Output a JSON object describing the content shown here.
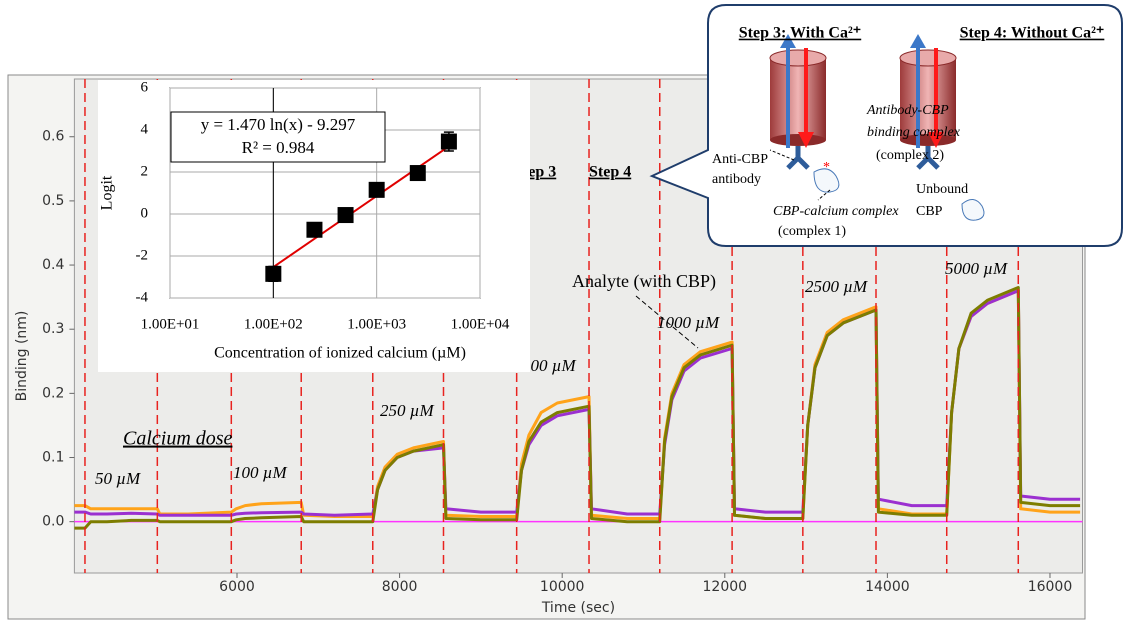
{
  "chart_data": [
    {
      "type": "line",
      "x_label": "Time (sec)",
      "y_label": "Binding (nm)",
      "xlim": [
        4000,
        16400
      ],
      "xticks": [
        6000,
        8000,
        10000,
        12000,
        14000,
        16000
      ],
      "ylim": [
        -0.08,
        0.69
      ],
      "yticks": [
        {
          "value": 0,
          "label": "0.0"
        },
        0.1,
        0.2,
        0.3,
        0.4,
        0.5,
        0.6
      ],
      "event_lines": [
        4130,
        5020,
        5930,
        6790,
        7670,
        8540,
        9440,
        10330,
        11200,
        12090,
        12960,
        13860,
        14730,
        15610
      ],
      "event_line_color": "#e8231f",
      "baseline": 0,
      "baseline_color": "#ff33ff",
      "x": [
        4000,
        4130,
        4200,
        4400,
        4700,
        5020,
        5050,
        5400,
        5930,
        5990,
        6100,
        6300,
        6790,
        6820,
        7200,
        7670,
        7730,
        7820,
        7970,
        8170,
        8540,
        8570,
        9000,
        9440,
        9500,
        9590,
        9740,
        9940,
        10330,
        10360,
        10800,
        11200,
        11260,
        11350,
        11500,
        11700,
        12090,
        12120,
        12500,
        12960,
        13020,
        13110,
        13260,
        13460,
        13860,
        13890,
        14300,
        14730,
        14790,
        14880,
        15030,
        15230,
        15610,
        15640,
        16000,
        16370
      ],
      "series": [
        {
          "color": "#ffa31a",
          "values": [
            0.025,
            0.025,
            0.02,
            0.02,
            0.02,
            0.02,
            0.012,
            0.012,
            0.015,
            0.02,
            0.025,
            0.028,
            0.03,
            0.01,
            0.008,
            0.008,
            0.055,
            0.085,
            0.105,
            0.115,
            0.125,
            0.01,
            0.008,
            0.008,
            0.09,
            0.135,
            0.17,
            0.185,
            0.195,
            0.01,
            0.005,
            0.005,
            0.13,
            0.2,
            0.245,
            0.265,
            0.28,
            0.01,
            0.005,
            0.005,
            0.15,
            0.245,
            0.295,
            0.315,
            0.335,
            0.02,
            0.012,
            0.012,
            0.17,
            0.27,
            0.32,
            0.34,
            0.36,
            0.02,
            0.015,
            0.015
          ]
        },
        {
          "color": "#9b30d0",
          "values": [
            0.015,
            0.015,
            0.012,
            0.012,
            0.013,
            0.012,
            0.01,
            0.01,
            0.01,
            0.012,
            0.013,
            0.014,
            0.015,
            0.012,
            0.01,
            0.012,
            0.05,
            0.08,
            0.1,
            0.11,
            0.115,
            0.02,
            0.015,
            0.015,
            0.08,
            0.12,
            0.15,
            0.165,
            0.175,
            0.02,
            0.012,
            0.012,
            0.12,
            0.19,
            0.235,
            0.255,
            0.27,
            0.02,
            0.015,
            0.015,
            0.15,
            0.24,
            0.29,
            0.31,
            0.33,
            0.035,
            0.025,
            0.025,
            0.17,
            0.27,
            0.32,
            0.34,
            0.36,
            0.04,
            0.035,
            0.035
          ]
        },
        {
          "color": "#7d7d00",
          "values": [
            -0.01,
            -0.01,
            0.0,
            0.0,
            0.002,
            0.002,
            0.0,
            0.0,
            0.0,
            0.003,
            0.005,
            0.006,
            0.008,
            0.0,
            0.0,
            0.0,
            0.05,
            0.08,
            0.1,
            0.11,
            0.12,
            0.005,
            0.003,
            0.003,
            0.08,
            0.125,
            0.155,
            0.17,
            0.18,
            0.005,
            0.0,
            0.0,
            0.125,
            0.195,
            0.24,
            0.26,
            0.275,
            0.01,
            0.005,
            0.005,
            0.15,
            0.24,
            0.29,
            0.31,
            0.33,
            0.015,
            0.01,
            0.01,
            0.17,
            0.27,
            0.325,
            0.345,
            0.365,
            0.03,
            0.025,
            0.025
          ]
        }
      ],
      "labels": {
        "calcium_dose": "Calcium dose",
        "step3": "Step 3",
        "step4": "Step 4",
        "analyte": "Analyte (with CBP)",
        "doses": [
          "50 µM",
          "100 µM",
          "250 µM",
          "500 µM",
          "1000 µM",
          "2500 µM",
          "5000 µM"
        ]
      }
    },
    {
      "type": "scatter",
      "x_label": "Concentration of ionized calcium (µM)",
      "y_label": "Logit",
      "log_x": true,
      "grid": true,
      "xlim": [
        10,
        10000
      ],
      "xticks": [
        {
          "value": 10,
          "label": "1.00E+01"
        },
        {
          "value": 100,
          "label": "1.00E+02"
        },
        {
          "value": 1000,
          "label": "1.00E+03"
        },
        {
          "value": 10000,
          "label": "1.00E+04"
        }
      ],
      "ylim": [
        -4,
        6
      ],
      "yticks": [
        -4,
        -2,
        0,
        2,
        4,
        6
      ],
      "x": [
        100,
        250,
        500,
        1000,
        2500,
        5000
      ],
      "values": [
        -2.85,
        -0.75,
        -0.05,
        1.15,
        1.95,
        3.45
      ],
      "error": [
        0.35,
        0.2,
        0.15,
        0.15,
        0.2,
        0.45
      ],
      "color": "#000000",
      "trendline": {
        "x": [
          100,
          5000
        ],
        "y": [
          -2.527,
          3.223
        ],
        "color": "#e00000"
      },
      "equation": "y = 1.470 ln(x) - 9.297",
      "r_squared": "R² = 0.984"
    }
  ],
  "callout": {
    "step3": "Step 3: With Ca²⁺",
    "step4": "Step 4: Without Ca²⁺",
    "complex2": [
      "Antibody-CBP",
      "binding complex",
      "(complex 2)"
    ],
    "antibody": [
      "Anti-CBP",
      "antibody"
    ],
    "complex1": [
      "CBP-calcium complex",
      "(complex 1)"
    ],
    "unbound": [
      "Unbound",
      "CBP"
    ]
  }
}
